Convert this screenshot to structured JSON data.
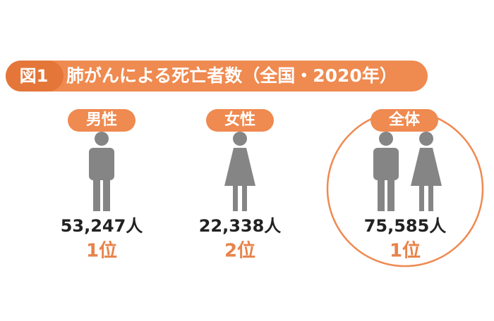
{
  "header": {
    "label": "図1",
    "title": "肺がんによる死亡者数（全国・2020年）"
  },
  "groups": [
    {
      "label": "男性",
      "count": "53,247人",
      "rank": "1位"
    },
    {
      "label": "女性",
      "count": "22,338人",
      "rank": "2位"
    },
    {
      "label": "全体",
      "count": "75,585人",
      "rank": "1位"
    }
  ]
}
